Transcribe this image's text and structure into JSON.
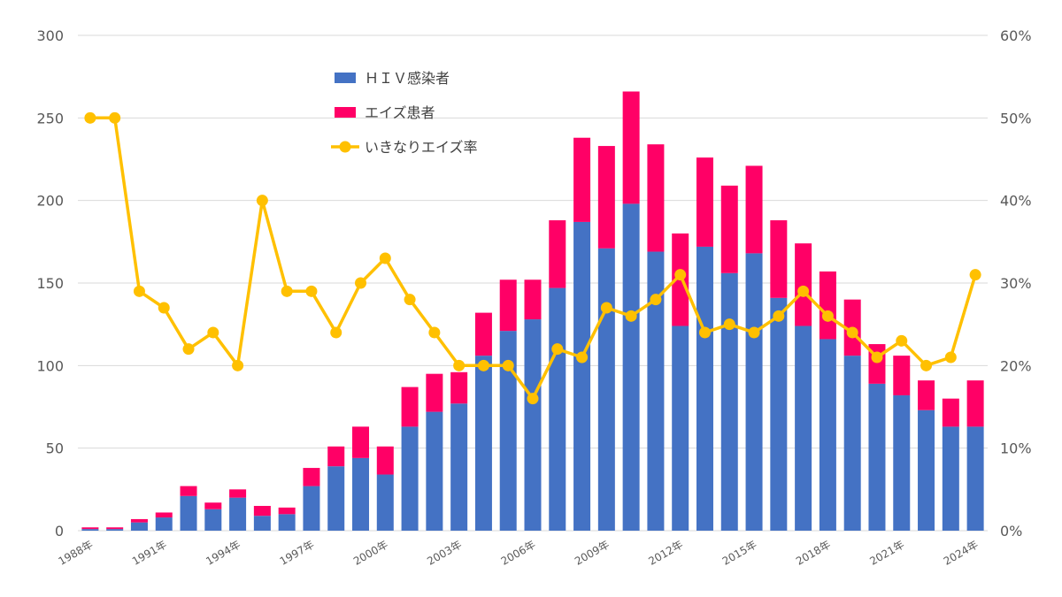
{
  "chart_data": {
    "type": "bar",
    "stacked": true,
    "categories": [
      "1988年",
      "1989年",
      "1990年",
      "1991年",
      "1992年",
      "1993年",
      "1994年",
      "1995年",
      "1996年",
      "1997年",
      "1998年",
      "1999年",
      "2000年",
      "2001年",
      "2002年",
      "2003年",
      "2004年",
      "2005年",
      "2006年",
      "2007年",
      "2008年",
      "2009年",
      "2010年",
      "2011年",
      "2012年",
      "2013年",
      "2014年",
      "2015年",
      "2016年",
      "2017年",
      "2018年",
      "2019年",
      "2020年",
      "2021年",
      "2022年",
      "2023年",
      "2024年"
    ],
    "x_tick_labels": [
      "1988年",
      "1991年",
      "1994年",
      "1997年",
      "2000年",
      "2003年",
      "2006年",
      "2009年",
      "2012年",
      "2015年",
      "2018年",
      "2021年",
      "2024年"
    ],
    "series": [
      {
        "name": "ＨＩＶ感染者",
        "axis": "left",
        "kind": "bar",
        "color": "#4472C4",
        "values": [
          1,
          1,
          5,
          8,
          21,
          13,
          20,
          9,
          10,
          27,
          39,
          44,
          34,
          63,
          72,
          77,
          106,
          121,
          128,
          147,
          187,
          171,
          198,
          169,
          124,
          172,
          156,
          168,
          141,
          124,
          116,
          106,
          89,
          82,
          73,
          63,
          63
        ]
      },
      {
        "name": "エイズ患者",
        "axis": "left",
        "kind": "bar",
        "color": "#FF0066",
        "values": [
          1,
          1,
          2,
          3,
          6,
          4,
          5,
          6,
          4,
          11,
          12,
          19,
          17,
          24,
          23,
          19,
          26,
          31,
          24,
          41,
          51,
          62,
          68,
          65,
          56,
          54,
          53,
          53,
          47,
          50,
          41,
          34,
          24,
          24,
          18,
          17,
          28
        ]
      },
      {
        "name": "いきなりエイズ率",
        "axis": "right",
        "kind": "line",
        "color": "#FFC000",
        "values": [
          50,
          50,
          29,
          27,
          22,
          24,
          20,
          40,
          29,
          29,
          24,
          30,
          33,
          28,
          24,
          20,
          20,
          20,
          16,
          22,
          21,
          27,
          26,
          28,
          31,
          24,
          25,
          24,
          26,
          29,
          26,
          24,
          21,
          23,
          20,
          21,
          31
        ]
      }
    ],
    "left_axis": {
      "min": 0,
      "max": 300,
      "ticks": [
        0,
        50,
        100,
        150,
        200,
        250,
        300
      ]
    },
    "right_axis": {
      "min": 0,
      "max": 60,
      "ticks": [
        "0%",
        "10%",
        "20%",
        "30%",
        "40%",
        "50%",
        "60%"
      ]
    },
    "title": "",
    "xlabel": "",
    "ylabel": "",
    "legend_position": "top-center",
    "grid": true
  }
}
